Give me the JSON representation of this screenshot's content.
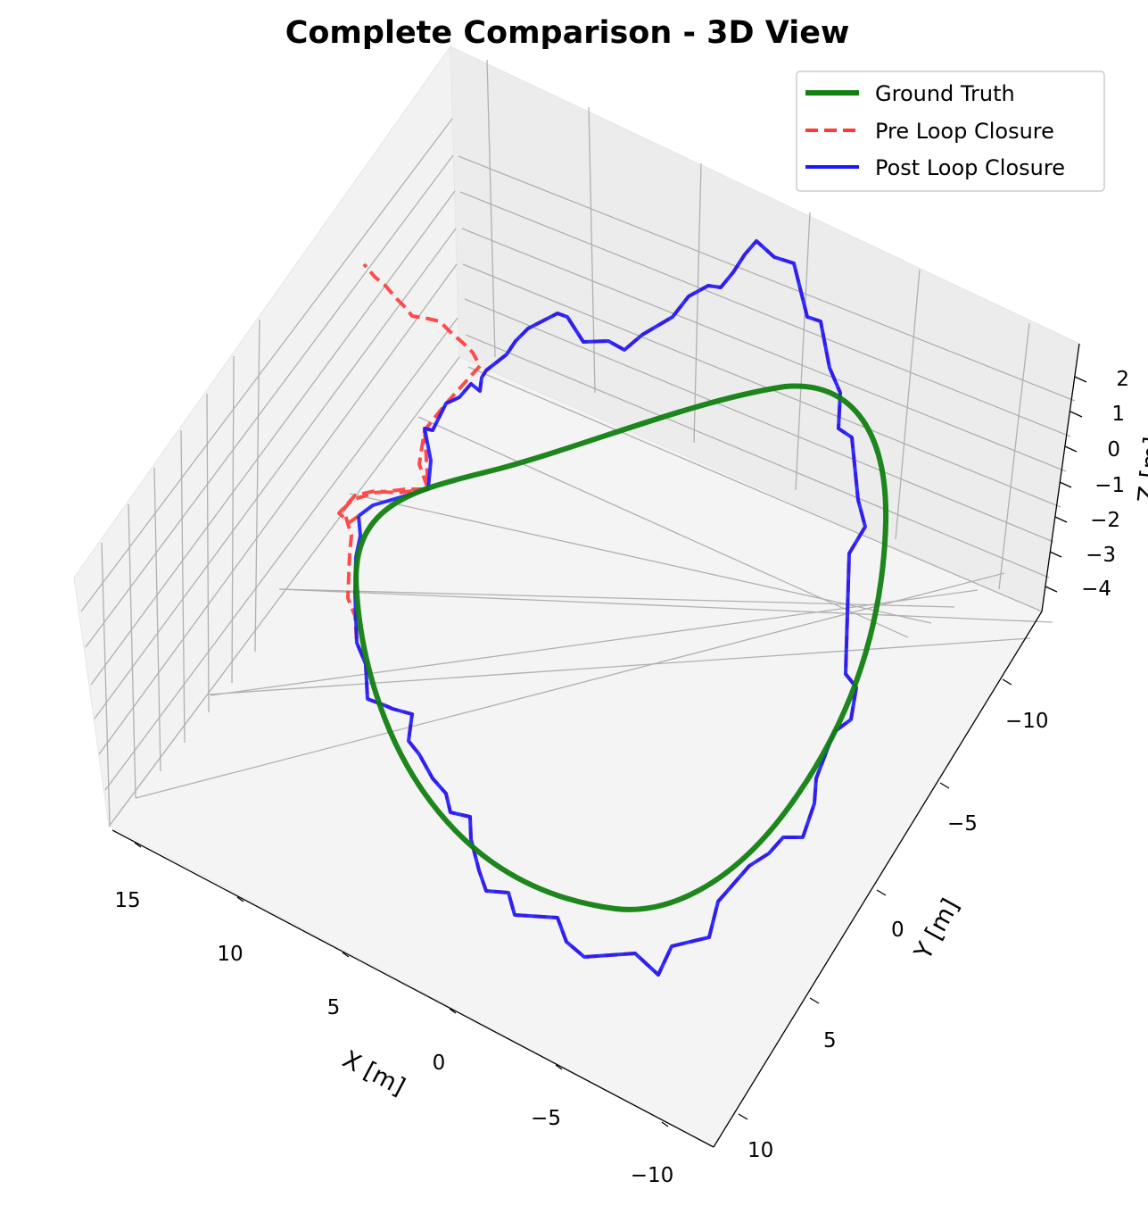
{
  "chart_data": {
    "type": "line",
    "projection": "3d",
    "title": "Complete Comparison - 3D View",
    "xlabel": "X [m]",
    "ylabel": "Y [m]",
    "zlabel": "Z [m]",
    "x_ticks": [
      "15",
      "10",
      "5",
      "0",
      "−5",
      "−10"
    ],
    "y_ticks": [
      "−10",
      "−5",
      "0",
      "5",
      "10"
    ],
    "z_ticks": [
      "2",
      "1",
      "0",
      "−1",
      "−2",
      "−3",
      "−4"
    ],
    "grid": true,
    "legend_position": "top-right",
    "series": [
      {
        "name": "Ground Truth",
        "color": "#118011",
        "style": "solid"
      },
      {
        "name": "Pre Loop Closure",
        "color": "#ff3838",
        "style": "dashed"
      },
      {
        "name": "Post Loop Closure",
        "color": "#1a1aff",
        "style": "solid"
      }
    ]
  }
}
